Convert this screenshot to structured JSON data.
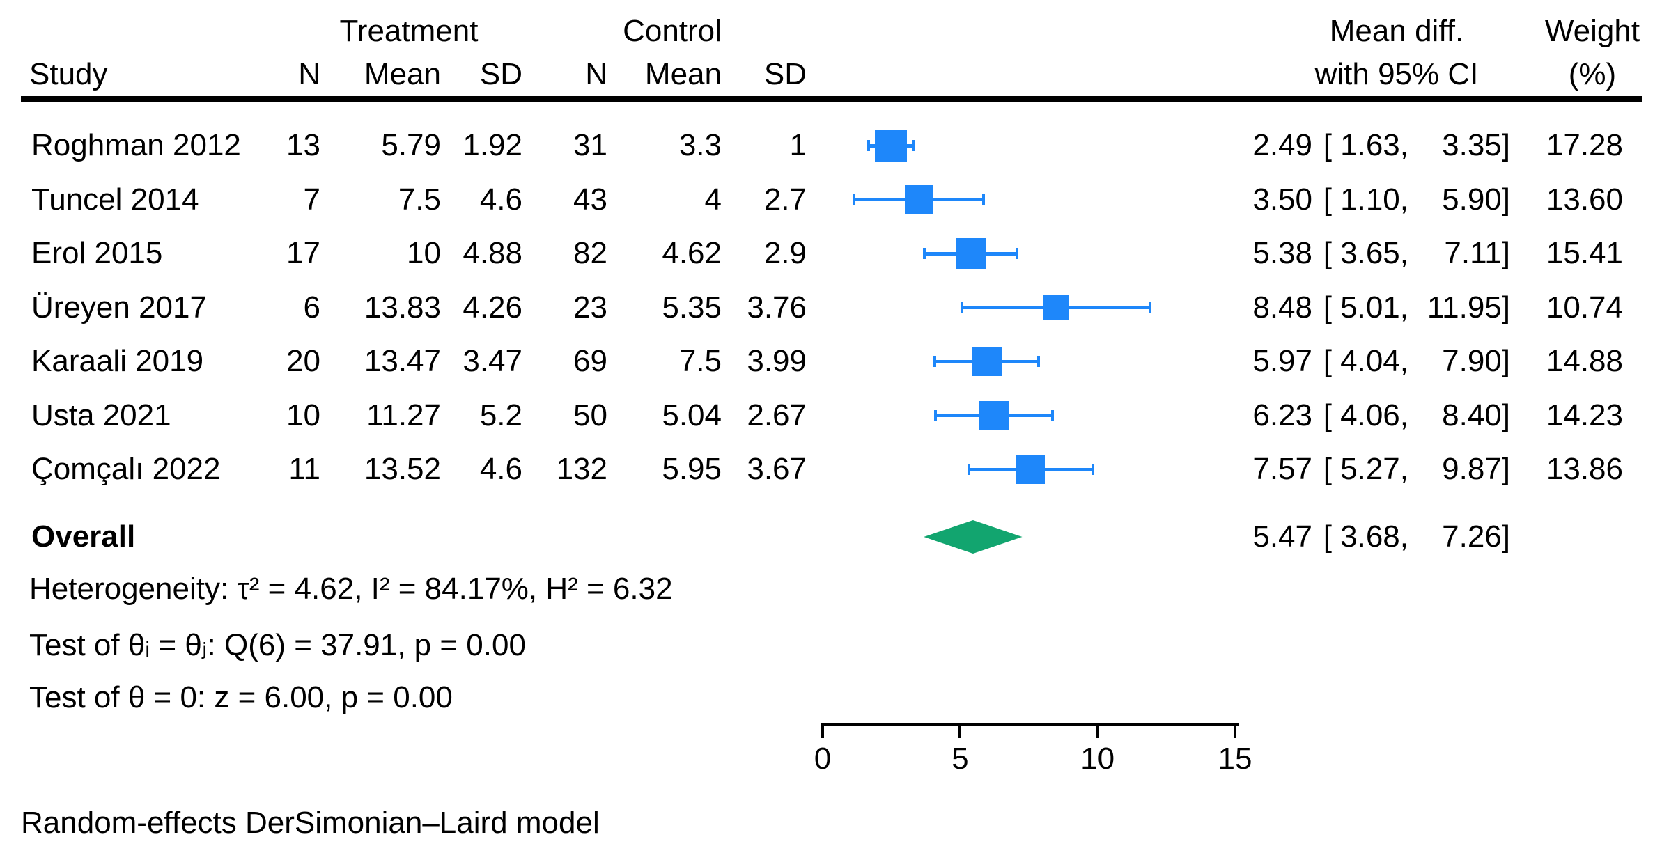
{
  "header": {
    "treatment_group": "Treatment",
    "control_group": "Control",
    "study": "Study",
    "treatment_cols": {
      "n": "N",
      "mean": "Mean",
      "sd": "SD"
    },
    "control_cols": {
      "n": "N",
      "mean": "Mean",
      "sd": "SD"
    },
    "effect_line1": "Mean diff.",
    "effect_line2": "with 95% CI",
    "weight_line1": "Weight",
    "weight_line2": "(%)"
  },
  "overall": {
    "label": "Overall"
  },
  "stats": {
    "heterogeneity": "Heterogeneity: τ² = 4.62, I² = 84.17%, H² = 6.32",
    "test_q": "Test of θᵢ = θⱼ: Q(6) = 37.91, p = 0.00",
    "test_z": "Test of θ = 0: z = 6.00, p = 0.00"
  },
  "note": "Random-effects DerSimonian–Laird model",
  "colors": {
    "marker_blue": "#1E87FA",
    "diamond_green": "#12A56F",
    "text_black": "#000000"
  },
  "chart_data": {
    "type": "forest",
    "title": "",
    "xlabel": "Mean difference",
    "xlim": [
      0,
      15
    ],
    "x_ticks": [
      0,
      5,
      10,
      15
    ],
    "model": "Random-effects DerSimonian–Laird model",
    "studies": [
      {
        "name": "Roghman 2012",
        "n_treat": 13,
        "mean_treat": 5.79,
        "sd_treat": 1.92,
        "n_ctrl": 31,
        "mean_ctrl": 3.3,
        "sd_ctrl": 1,
        "est": 2.49,
        "ci_low": 1.63,
        "ci_high": 3.35,
        "weight_pct": 17.28
      },
      {
        "name": "Tuncel 2014",
        "n_treat": 7,
        "mean_treat": 7.5,
        "sd_treat": 4.6,
        "n_ctrl": 43,
        "mean_ctrl": 4,
        "sd_ctrl": 2.7,
        "est": 3.5,
        "ci_low": 1.1,
        "ci_high": 5.9,
        "weight_pct": 13.6
      },
      {
        "name": "Erol 2015",
        "n_treat": 17,
        "mean_treat": 10,
        "sd_treat": 4.88,
        "n_ctrl": 82,
        "mean_ctrl": 4.62,
        "sd_ctrl": 2.9,
        "est": 5.38,
        "ci_low": 3.65,
        "ci_high": 7.11,
        "weight_pct": 15.41
      },
      {
        "name": "Üreyen 2017",
        "n_treat": 6,
        "mean_treat": 13.83,
        "sd_treat": 4.26,
        "n_ctrl": 23,
        "mean_ctrl": 5.35,
        "sd_ctrl": 3.76,
        "est": 8.48,
        "ci_low": 5.01,
        "ci_high": 11.95,
        "weight_pct": 10.74
      },
      {
        "name": "Karaali 2019",
        "n_treat": 20,
        "mean_treat": 13.47,
        "sd_treat": 3.47,
        "n_ctrl": 69,
        "mean_ctrl": 7.5,
        "sd_ctrl": 3.99,
        "est": 5.97,
        "ci_low": 4.04,
        "ci_high": 7.9,
        "weight_pct": 14.88
      },
      {
        "name": "Usta 2021",
        "n_treat": 10,
        "mean_treat": 11.27,
        "sd_treat": 5.2,
        "n_ctrl": 50,
        "mean_ctrl": 5.04,
        "sd_ctrl": 2.67,
        "est": 6.23,
        "ci_low": 4.06,
        "ci_high": 8.4,
        "weight_pct": 14.23
      },
      {
        "name": "Çomçalı 2022",
        "n_treat": 11,
        "mean_treat": 13.52,
        "sd_treat": 4.6,
        "n_ctrl": 132,
        "mean_ctrl": 5.95,
        "sd_ctrl": 3.67,
        "est": 7.57,
        "ci_low": 5.27,
        "ci_high": 9.87,
        "weight_pct": 13.86
      }
    ],
    "overall": {
      "est": 5.47,
      "ci_low": 3.68,
      "ci_high": 7.26
    },
    "heterogeneity": {
      "tau2": 4.62,
      "I2_pct": 84.17,
      "H2": 6.32
    },
    "test_theta_equal": {
      "df": 6,
      "Q": 37.91,
      "p": 0.0
    },
    "test_theta_zero": {
      "z": 6.0,
      "p": 0.0
    },
    "legend_position": "none",
    "grid": false
  }
}
